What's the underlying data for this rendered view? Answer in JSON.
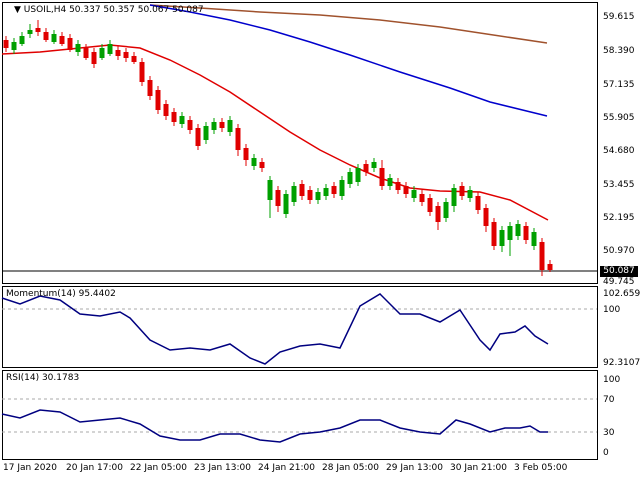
{
  "main_panel": {
    "title": "USOIL,H4  50.337 50.357 50.067 50.087",
    "current_price": "50.087",
    "price_axis": [
      "59.615",
      "58.390",
      "57.135",
      "55.905",
      "54.680",
      "53.455",
      "52.195",
      "50.970",
      "49.745"
    ],
    "colors": {
      "bull": "#00a000",
      "bear": "#e00000",
      "ma_fast": "#e00000",
      "ma_mid": "#0000cc",
      "ma_slow": "#a0522d"
    }
  },
  "momentum_panel": {
    "title": "Momentum(14) 95.4402",
    "axis": [
      "102.6591",
      "100",
      "92.3107"
    ],
    "color": "#000080"
  },
  "rsi_panel": {
    "title": "RSI(14) 30.1783",
    "axis": [
      "100",
      "70",
      "30",
      "0"
    ],
    "color": "#000080"
  },
  "time_axis": [
    "17 Jan 2020",
    "20 Jan 17:00",
    "22 Jan 05:00",
    "23 Jan 13:00",
    "24 Jan 21:00",
    "28 Jan 05:00",
    "29 Jan 13:00",
    "30 Jan 21:00",
    "3 Feb 05:00"
  ],
  "chart_data": {
    "type": "candlestick",
    "series": [
      {
        "name": "USOIL,H4",
        "close_last": 50.087
      },
      {
        "name": "Momentum(14)",
        "last": 95.4402
      },
      {
        "name": "RSI(14)",
        "last": 30.1783
      }
    ]
  }
}
